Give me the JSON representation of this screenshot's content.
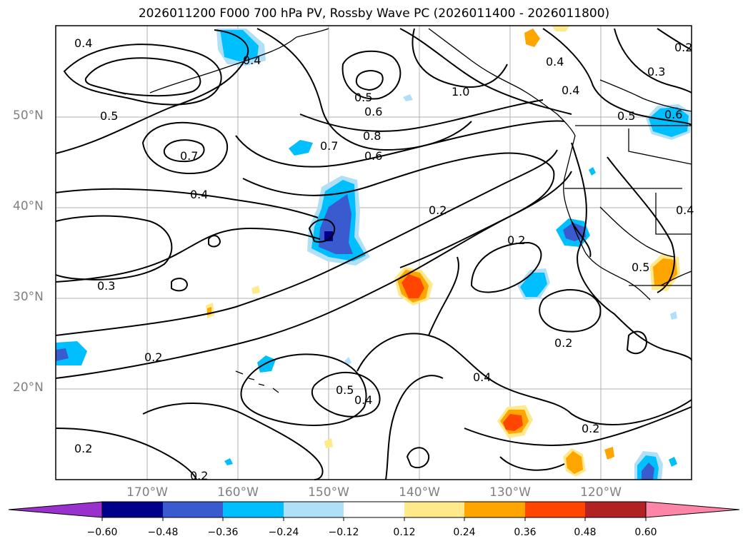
{
  "title": "2026011200 F000 700 hPa PV, Rossby Wave PC (2026011400 - 2026011800)",
  "map": {
    "lat_labels": [
      "50°N",
      "40°N",
      "30°N",
      "20°N"
    ],
    "lon_labels": [
      "170°W",
      "160°W",
      "150°W",
      "140°W",
      "130°W",
      "120°W"
    ],
    "contour_labels": [
      "0.4",
      "0.4",
      "0.5",
      "0.7",
      "0.4",
      "0.3",
      "0.2",
      "0.2",
      "0.2",
      "0.5",
      "0.6",
      "0.8",
      "0.6",
      "0.7",
      "0.2",
      "0.2",
      "1.0",
      "0.4",
      "0.4",
      "0.3",
      "0.5",
      "0.6",
      "0.2",
      "0.4",
      "0.5",
      "0.4",
      "0.2",
      "0.2",
      "0.4",
      "0.5"
    ],
    "land_color": "#000000",
    "contour_color": "#000000"
  },
  "colorbar": {
    "ticks": [
      "−0.60",
      "−0.48",
      "−0.36",
      "−0.24",
      "−0.12",
      "0.12",
      "0.24",
      "0.36",
      "0.48",
      "0.60"
    ],
    "colors": [
      "#9932cc",
      "#00008b",
      "#3a5bcf",
      "#00bfff",
      "#b0e0f8",
      "#ffffff",
      "#ffe98a",
      "#ffa500",
      "#ff4500",
      "#b22222",
      "#ff85a8"
    ]
  }
}
